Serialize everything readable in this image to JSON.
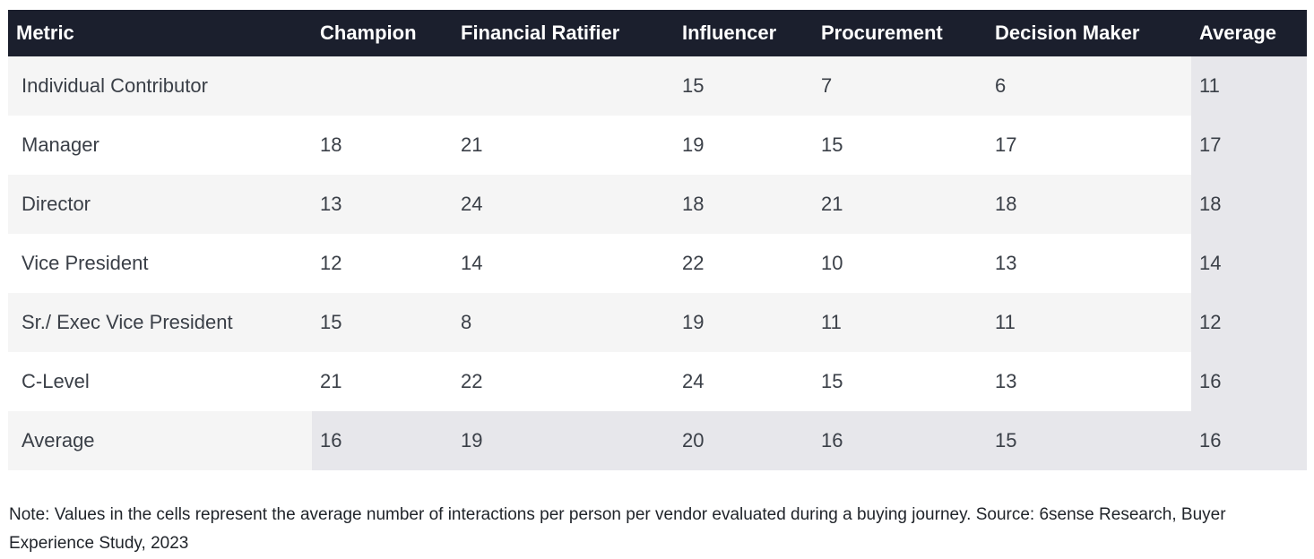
{
  "chart_data": {
    "type": "table",
    "columns": [
      "Metric",
      "Champion",
      "Financial Ratifier",
      "Influencer",
      "Procurement",
      "Decision Maker",
      "Average"
    ],
    "rows": [
      [
        "Individual Contributor",
        "",
        "",
        "15",
        "7",
        "6",
        "11"
      ],
      [
        "Manager",
        "18",
        "21",
        "19",
        "15",
        "17",
        "17"
      ],
      [
        "Director",
        "13",
        "24",
        "18",
        "21",
        "18",
        "18"
      ],
      [
        "Vice President",
        "12",
        "14",
        "22",
        "10",
        "13",
        "14"
      ],
      [
        "Sr./ Exec Vice President",
        "15",
        "8",
        "19",
        "11",
        "11",
        "12"
      ],
      [
        "C-Level",
        "21",
        "22",
        "24",
        "15",
        "13",
        "16"
      ],
      [
        "Average",
        "16",
        "19",
        "20",
        "16",
        "15",
        "16"
      ]
    ]
  },
  "note": "Note: Values in the cells represent the average number of interactions per person per vendor evaluated during a buying journey. Source: 6sense Research, Buyer Experience Study, 2023",
  "colors": {
    "header_bg": "#1b1f2d",
    "header_text": "#ffffff",
    "row_alt": "#f5f5f5",
    "average_band": "#e7e7eb",
    "text": "#3a3f47"
  }
}
